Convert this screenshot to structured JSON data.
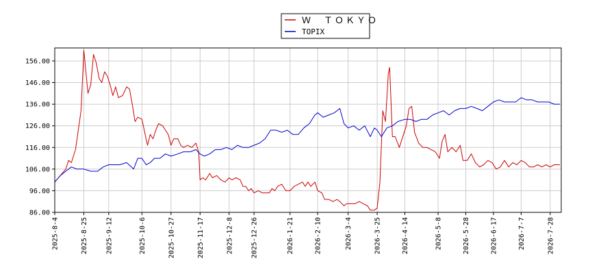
{
  "chart_data": {
    "type": "line",
    "title": "",
    "xlabel": "",
    "ylabel": "",
    "ylim": [
      86,
      162
    ],
    "y_ticks": [
      86,
      96,
      106,
      116,
      126,
      136,
      146,
      156
    ],
    "x_ticks": [
      "2025-8-4",
      "2025-8-25",
      "2025-9-12",
      "2025-10-6",
      "2025-10-27",
      "2025-11-17",
      "2025-12-8",
      "2025-12-26",
      "2026-1-21",
      "2026-2-10",
      "2026-3-4",
      "2026-3-25",
      "2026-4-14",
      "2026-5-8",
      "2026-5-28",
      "2026-6-17",
      "2026-7-7",
      "2026-7-28"
    ],
    "x_range": [
      "2025-8-4",
      "2026-8-5"
    ],
    "grid": true,
    "legend_position": "top-center",
    "series": [
      {
        "name": "Ｗ　ＴＯＫＹＯ",
        "color": "#cc0000",
        "points": [
          [
            "2025-8-4",
            100
          ],
          [
            "2025-8-8",
            103
          ],
          [
            "2025-8-12",
            106
          ],
          [
            "2025-8-14",
            110
          ],
          [
            "2025-8-16",
            109
          ],
          [
            "2025-8-19",
            115
          ],
          [
            "2025-8-21",
            124
          ],
          [
            "2025-8-23",
            133
          ],
          [
            "2025-8-25",
            161
          ],
          [
            "2025-8-28",
            141
          ],
          [
            "2025-8-30",
            145
          ],
          [
            "2025-9-1",
            159
          ],
          [
            "2025-9-3",
            155
          ],
          [
            "2025-9-5",
            148
          ],
          [
            "2025-9-7",
            146
          ],
          [
            "2025-9-9",
            151
          ],
          [
            "2025-9-11",
            149
          ],
          [
            "2025-9-13",
            145
          ],
          [
            "2025-9-15",
            140
          ],
          [
            "2025-9-17",
            144
          ],
          [
            "2025-9-19",
            139
          ],
          [
            "2025-9-22",
            140
          ],
          [
            "2025-9-25",
            144
          ],
          [
            "2025-9-27",
            143
          ],
          [
            "2025-9-29",
            136
          ],
          [
            "2025-10-1",
            128
          ],
          [
            "2025-10-3",
            130
          ],
          [
            "2025-10-6",
            129
          ],
          [
            "2025-10-9",
            120
          ],
          [
            "2025-10-10",
            117
          ],
          [
            "2025-10-12",
            122
          ],
          [
            "2025-10-14",
            120
          ],
          [
            "2025-10-16",
            124
          ],
          [
            "2025-10-18",
            127
          ],
          [
            "2025-10-21",
            126
          ],
          [
            "2025-10-23",
            124
          ],
          [
            "2025-10-25",
            122
          ],
          [
            "2025-10-27",
            117
          ],
          [
            "2025-10-29",
            120
          ],
          [
            "2025-11-1",
            120
          ],
          [
            "2025-11-3",
            117
          ],
          [
            "2025-11-5",
            116
          ],
          [
            "2025-11-8",
            117
          ],
          [
            "2025-11-11",
            116
          ],
          [
            "2025-11-14",
            118
          ],
          [
            "2025-11-16",
            114
          ],
          [
            "2025-11-17",
            101
          ],
          [
            "2025-11-19",
            102
          ],
          [
            "2025-11-21",
            101
          ],
          [
            "2025-11-24",
            104
          ],
          [
            "2025-11-26",
            102
          ],
          [
            "2025-11-29",
            103
          ],
          [
            "2025-12-2",
            101
          ],
          [
            "2025-12-5",
            100
          ],
          [
            "2025-12-8",
            102
          ],
          [
            "2025-12-10",
            101
          ],
          [
            "2025-12-13",
            102
          ],
          [
            "2025-12-16",
            101
          ],
          [
            "2025-12-18",
            98
          ],
          [
            "2025-12-20",
            98
          ],
          [
            "2025-12-22",
            96
          ],
          [
            "2025-12-24",
            97
          ],
          [
            "2025-12-26",
            95
          ],
          [
            "2025-12-29",
            96
          ],
          [
            "2026-1-1",
            95
          ],
          [
            "2026-1-3",
            95
          ],
          [
            "2026-1-6",
            95
          ],
          [
            "2026-1-8",
            97
          ],
          [
            "2026-1-10",
            96
          ],
          [
            "2026-1-12",
            98
          ],
          [
            "2026-1-15",
            99
          ],
          [
            "2026-1-18",
            96
          ],
          [
            "2026-1-21",
            96
          ],
          [
            "2026-1-24",
            98
          ],
          [
            "2026-1-27",
            99
          ],
          [
            "2026-1-30",
            100
          ],
          [
            "2026-2-1",
            98
          ],
          [
            "2026-2-3",
            100
          ],
          [
            "2026-2-5",
            98
          ],
          [
            "2026-2-8",
            100
          ],
          [
            "2026-2-10",
            96
          ],
          [
            "2026-2-13",
            95
          ],
          [
            "2026-2-15",
            92
          ],
          [
            "2026-2-18",
            92
          ],
          [
            "2026-2-21",
            91
          ],
          [
            "2026-2-24",
            92
          ],
          [
            "2026-2-26",
            91
          ],
          [
            "2026-3-1",
            89
          ],
          [
            "2026-3-3",
            90
          ],
          [
            "2026-3-6",
            90
          ],
          [
            "2026-3-9",
            90
          ],
          [
            "2026-3-12",
            91
          ],
          [
            "2026-3-15",
            90
          ],
          [
            "2026-3-18",
            89
          ],
          [
            "2026-3-20",
            87
          ],
          [
            "2026-3-23",
            87
          ],
          [
            "2026-3-25",
            88
          ],
          [
            "2026-3-27",
            100
          ],
          [
            "2026-3-29",
            133
          ],
          [
            "2026-3-31",
            128
          ],
          [
            "2026-4-2",
            150
          ],
          [
            "2026-4-3",
            153
          ],
          [
            "2026-4-5",
            121
          ],
          [
            "2026-4-7",
            121
          ],
          [
            "2026-4-10",
            116
          ],
          [
            "2026-4-13",
            122
          ],
          [
            "2026-4-15",
            126
          ],
          [
            "2026-4-17",
            134
          ],
          [
            "2026-4-19",
            135
          ],
          [
            "2026-4-21",
            123
          ],
          [
            "2026-4-24",
            118
          ],
          [
            "2026-4-27",
            116
          ],
          [
            "2026-4-30",
            116
          ],
          [
            "2026-5-3",
            115
          ],
          [
            "2026-5-6",
            114
          ],
          [
            "2026-5-9",
            111
          ],
          [
            "2026-5-11",
            119
          ],
          [
            "2026-5-13",
            122
          ],
          [
            "2026-5-15",
            114
          ],
          [
            "2026-5-18",
            116
          ],
          [
            "2026-5-21",
            114
          ],
          [
            "2026-5-24",
            117
          ],
          [
            "2026-5-26",
            110
          ],
          [
            "2026-5-29",
            110
          ],
          [
            "2026-6-1",
            113
          ],
          [
            "2026-6-4",
            109
          ],
          [
            "2026-6-7",
            107
          ],
          [
            "2026-6-10",
            108
          ],
          [
            "2026-6-13",
            110
          ],
          [
            "2026-6-16",
            109
          ],
          [
            "2026-6-19",
            106
          ],
          [
            "2026-6-22",
            107
          ],
          [
            "2026-6-25",
            110
          ],
          [
            "2026-6-28",
            107
          ],
          [
            "2026-7-1",
            109
          ],
          [
            "2026-7-4",
            108
          ],
          [
            "2026-7-7",
            110
          ],
          [
            "2026-7-10",
            109
          ],
          [
            "2026-7-13",
            107
          ],
          [
            "2026-7-16",
            107
          ],
          [
            "2026-7-19",
            108
          ],
          [
            "2026-7-22",
            107
          ],
          [
            "2026-7-25",
            108
          ],
          [
            "2026-7-28",
            107
          ],
          [
            "2026-7-31",
            108
          ],
          [
            "2026-8-4",
            108
          ]
        ]
      },
      {
        "name": "TOPIX",
        "color": "#0000cc",
        "points": [
          [
            "2025-8-4",
            100
          ],
          [
            "2025-8-8",
            103
          ],
          [
            "2025-8-12",
            105
          ],
          [
            "2025-8-16",
            107
          ],
          [
            "2025-8-20",
            106
          ],
          [
            "2025-8-25",
            106
          ],
          [
            "2025-8-30",
            105
          ],
          [
            "2025-9-4",
            105
          ],
          [
            "2025-9-8",
            107
          ],
          [
            "2025-9-12",
            108
          ],
          [
            "2025-9-16",
            108
          ],
          [
            "2025-9-20",
            108
          ],
          [
            "2025-9-25",
            109
          ],
          [
            "2025-9-30",
            106
          ],
          [
            "2025-10-3",
            111
          ],
          [
            "2025-10-6",
            111
          ],
          [
            "2025-10-9",
            108
          ],
          [
            "2025-10-12",
            109
          ],
          [
            "2025-10-15",
            111
          ],
          [
            "2025-10-19",
            111
          ],
          [
            "2025-10-23",
            113
          ],
          [
            "2025-10-27",
            112
          ],
          [
            "2025-11-1",
            113
          ],
          [
            "2025-11-5",
            114
          ],
          [
            "2025-11-10",
            114
          ],
          [
            "2025-11-14",
            115
          ],
          [
            "2025-11-17",
            113
          ],
          [
            "2025-11-20",
            112
          ],
          [
            "2025-11-24",
            113
          ],
          [
            "2025-11-28",
            115
          ],
          [
            "2025-12-2",
            115
          ],
          [
            "2025-12-6",
            116
          ],
          [
            "2025-12-10",
            115
          ],
          [
            "2025-12-14",
            117
          ],
          [
            "2025-12-18",
            116
          ],
          [
            "2025-12-22",
            116
          ],
          [
            "2025-12-26",
            117
          ],
          [
            "2025-12-30",
            118
          ],
          [
            "2026-1-3",
            120
          ],
          [
            "2026-1-7",
            124
          ],
          [
            "2026-1-11",
            124
          ],
          [
            "2026-1-15",
            123
          ],
          [
            "2026-1-19",
            124
          ],
          [
            "2026-1-23",
            122
          ],
          [
            "2026-1-27",
            122
          ],
          [
            "2026-1-31",
            125
          ],
          [
            "2026-2-4",
            127
          ],
          [
            "2026-2-8",
            131
          ],
          [
            "2026-2-10",
            132
          ],
          [
            "2026-2-14",
            130
          ],
          [
            "2026-2-18",
            131
          ],
          [
            "2026-2-22",
            132
          ],
          [
            "2026-2-26",
            134
          ],
          [
            "2026-3-1",
            127
          ],
          [
            "2026-3-4",
            125
          ],
          [
            "2026-3-8",
            126
          ],
          [
            "2026-3-12",
            124
          ],
          [
            "2026-3-16",
            126
          ],
          [
            "2026-3-20",
            121
          ],
          [
            "2026-3-23",
            125
          ],
          [
            "2026-3-25",
            124
          ],
          [
            "2026-3-28",
            121
          ],
          [
            "2026-4-1",
            125
          ],
          [
            "2026-4-5",
            126
          ],
          [
            "2026-4-9",
            128
          ],
          [
            "2026-4-14",
            129
          ],
          [
            "2026-4-18",
            129
          ],
          [
            "2026-4-22",
            128
          ],
          [
            "2026-4-26",
            129
          ],
          [
            "2026-4-30",
            129
          ],
          [
            "2026-5-4",
            131
          ],
          [
            "2026-5-8",
            132
          ],
          [
            "2026-5-12",
            133
          ],
          [
            "2026-5-16",
            131
          ],
          [
            "2026-5-20",
            133
          ],
          [
            "2026-5-24",
            134
          ],
          [
            "2026-5-28",
            134
          ],
          [
            "2026-6-1",
            135
          ],
          [
            "2026-6-5",
            134
          ],
          [
            "2026-6-9",
            133
          ],
          [
            "2026-6-13",
            135
          ],
          [
            "2026-6-17",
            137
          ],
          [
            "2026-6-21",
            138
          ],
          [
            "2026-6-25",
            137
          ],
          [
            "2026-6-29",
            137
          ],
          [
            "2026-7-3",
            137
          ],
          [
            "2026-7-7",
            139
          ],
          [
            "2026-7-11",
            138
          ],
          [
            "2026-7-15",
            138
          ],
          [
            "2026-7-19",
            137
          ],
          [
            "2026-7-23",
            137
          ],
          [
            "2026-7-27",
            137
          ],
          [
            "2026-7-31",
            136
          ],
          [
            "2026-8-4",
            136
          ]
        ]
      }
    ]
  }
}
